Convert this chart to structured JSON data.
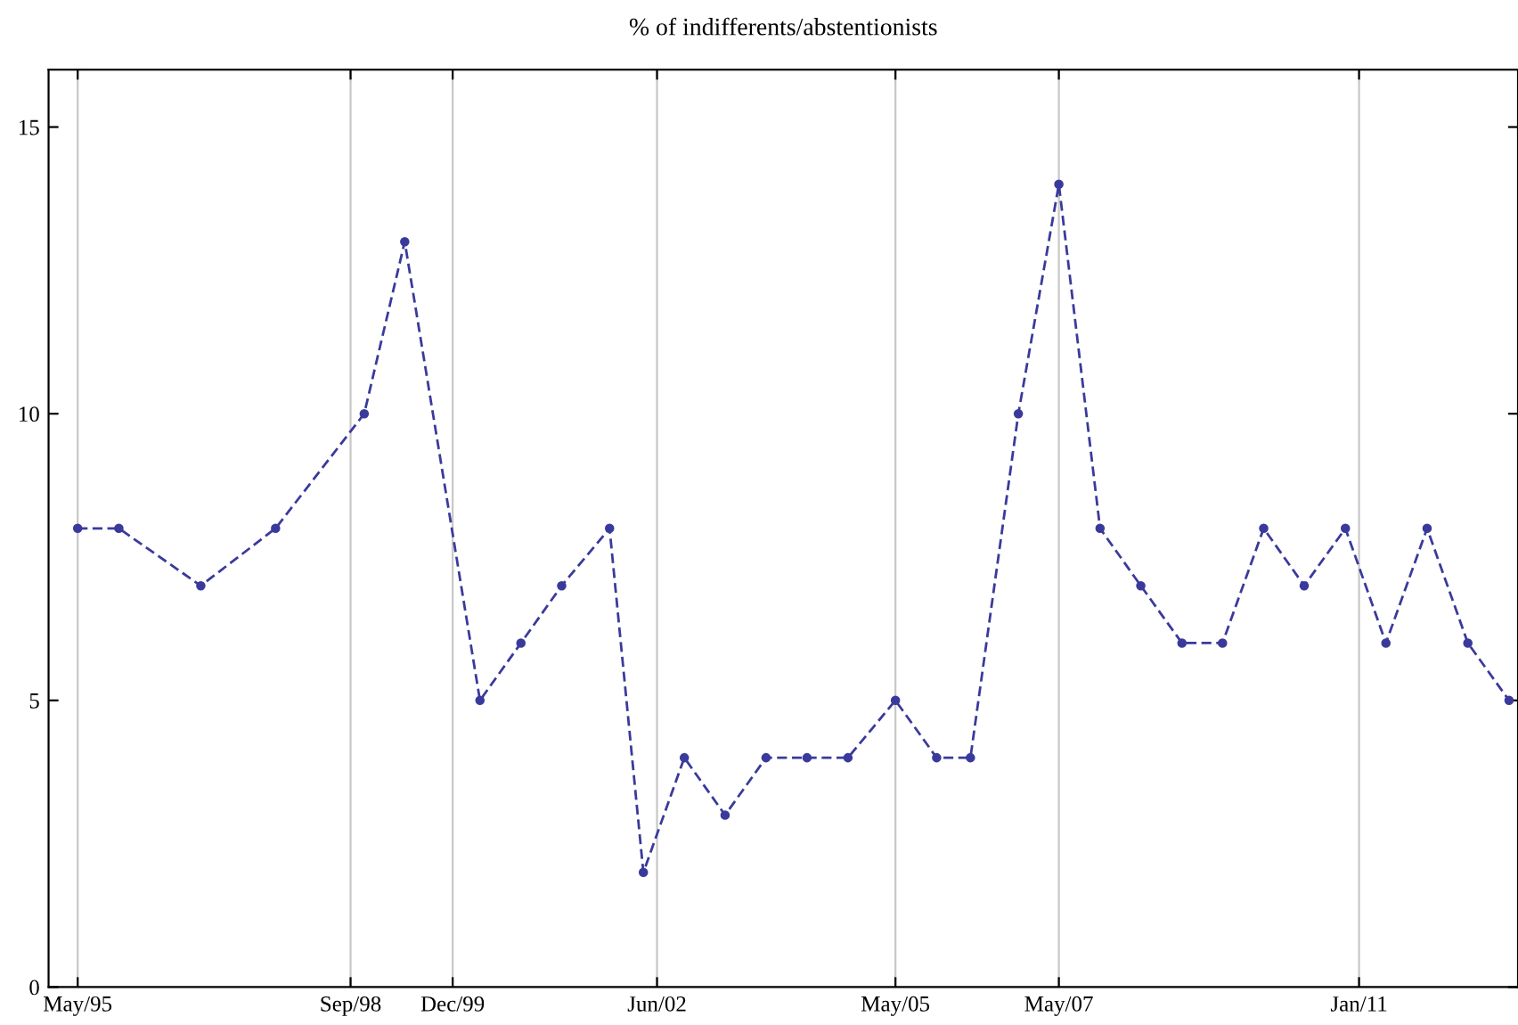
{
  "chart_data": {
    "type": "line",
    "title": "% of indifferents/abstentionists",
    "x": [
      "1995-05",
      "1995-11",
      "1996-11",
      "1997-10",
      "1998-11",
      "1999-05",
      "2000-04",
      "2000-10",
      "2001-04",
      "2001-11",
      "2002-04",
      "2002-10",
      "2003-04",
      "2003-10",
      "2004-04",
      "2004-10",
      "2005-05",
      "2005-11",
      "2006-04",
      "2006-11",
      "2007-05",
      "2007-11",
      "2008-05",
      "2008-11",
      "2009-05",
      "2009-11",
      "2010-05",
      "2010-11",
      "2011-05",
      "2011-11",
      "2012-05",
      "2012-11"
    ],
    "series": [
      {
        "color": "#3a3a9c",
        "values": [
          8,
          8,
          7,
          8,
          10,
          13,
          5,
          6,
          7,
          8,
          2,
          4,
          3,
          4,
          4,
          4,
          5,
          4,
          4,
          10,
          14,
          8,
          7,
          6,
          6,
          8,
          7,
          8,
          6,
          8,
          6,
          5
        ]
      }
    ],
    "xlim": [
      "1995-01-05",
      "2012-12-25"
    ],
    "xticks": [
      {
        "value": "1995-05",
        "label": "May/95"
      },
      {
        "value": "1998-09",
        "label": "Sep/98"
      },
      {
        "value": "1999-12",
        "label": "Dec/99"
      },
      {
        "value": "2002-06",
        "label": "Jun/02"
      },
      {
        "value": "2005-05",
        "label": "May/05"
      },
      {
        "value": "2007-05",
        "label": "May/07"
      },
      {
        "value": "2011-01",
        "label": "Jan/11"
      }
    ],
    "ylim": [
      0,
      16
    ],
    "yticks": [
      0,
      5,
      10,
      15
    ],
    "grid": "x",
    "marker": "circle",
    "line_style": "dashed",
    "legend": false
  }
}
